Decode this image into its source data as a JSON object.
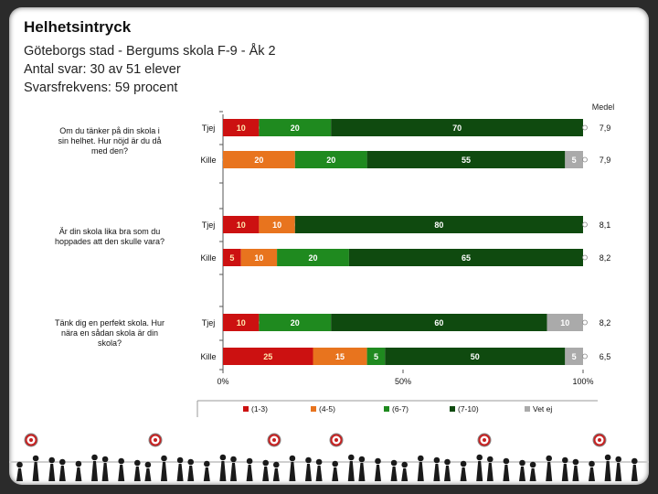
{
  "header": {
    "title": "Helhetsintryck",
    "line1": "Göteborgs stad - Bergums skola F-9 - Åk 2",
    "line2": "Antal svar: 30 av 51 elever",
    "line3": "Svarsfrekvens: 59 procent"
  },
  "colors": {
    "c1": "#cc1111",
    "c2": "#e8741e",
    "c3": "#1f8a1f",
    "c4": "#0f4a0f",
    "c5": "#aaaaaa"
  },
  "chart_data": {
    "type": "bar",
    "stacked": true,
    "orientation": "horizontal",
    "medel_label": "Medel",
    "x_ticks": [
      "0%",
      "50%",
      "100%"
    ],
    "legend": [
      "(1-3)",
      "(4-5)",
      "(6-7)",
      "(7-10)",
      "Vet ej"
    ],
    "questions": [
      {
        "text": "Om du tänker på din skola i sin helhet. Hur nöjd är du då med den?",
        "rows": [
          {
            "group": "Tjej",
            "values": [
              10,
              0,
              20,
              70,
              0
            ],
            "labels": [
              "10",
              "0",
              "20",
              "70",
              ""
            ],
            "medel": "7,9"
          },
          {
            "group": "Kille",
            "values": [
              0,
              20,
              20,
              55,
              5
            ],
            "labels": [
              "0",
              "20",
              "20",
              "55",
              "5"
            ],
            "medel": "7,9"
          }
        ]
      },
      {
        "text": "Är din skola lika bra som du hoppades att den skulle vara?",
        "rows": [
          {
            "group": "Tjej",
            "values": [
              10,
              10,
              0,
              80,
              0
            ],
            "labels": [
              "10",
              "10",
              "0",
              "80",
              ""
            ],
            "medel": "8,1"
          },
          {
            "group": "Kille",
            "values": [
              5,
              10,
              20,
              65,
              0
            ],
            "labels": [
              "5",
              "10",
              "20",
              "65",
              ""
            ],
            "medel": "8,2"
          }
        ]
      },
      {
        "text": "Tänk dig en perfekt skola. Hur nära en sådan skola är din skola?",
        "rows": [
          {
            "group": "Tjej",
            "values": [
              10,
              0,
              20,
              60,
              10
            ],
            "labels": [
              "10",
              "0",
              "20",
              "60",
              "10"
            ],
            "medel": "8,2"
          },
          {
            "group": "Kille",
            "values": [
              25,
              15,
              5,
              50,
              5
            ],
            "labels": [
              "25",
              "15",
              "5",
              "50",
              "5"
            ],
            "medel": "6,5"
          }
        ]
      }
    ]
  }
}
